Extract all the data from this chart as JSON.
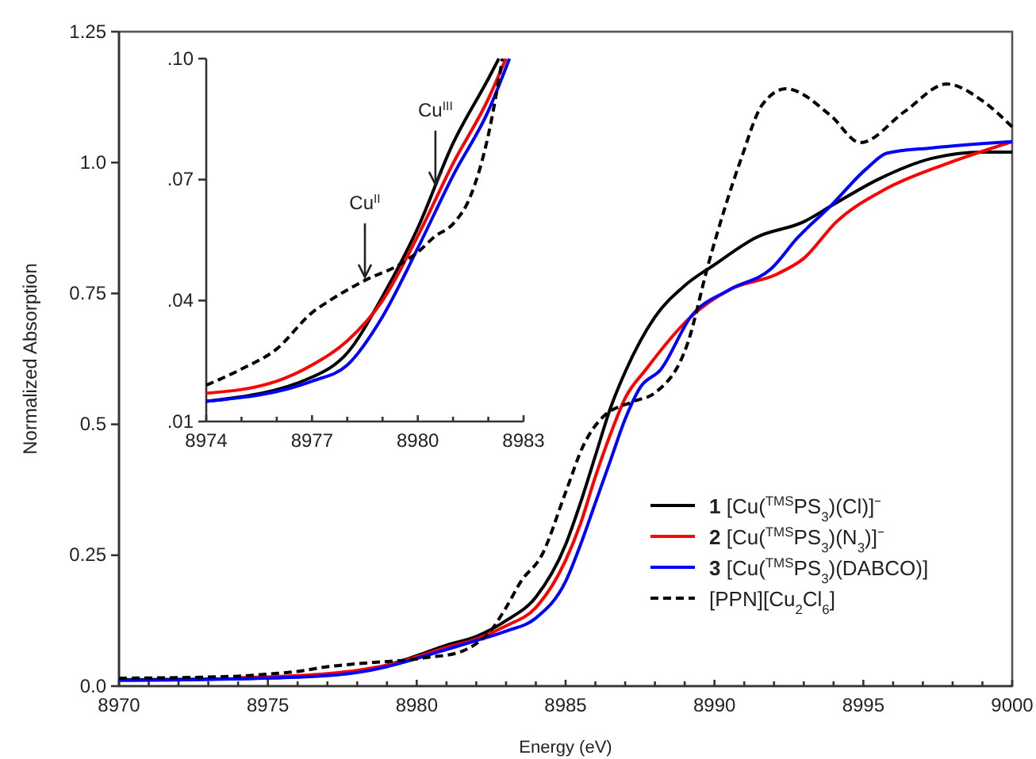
{
  "chart_data": [
    {
      "type": "line",
      "xlabel": "Energy (eV)",
      "ylabel": "Normalized Absorption",
      "xlim": [
        8970,
        9000
      ],
      "ylim": [
        0,
        1.25
      ],
      "xticks": [
        8970,
        {
          "value": 8971,
          "label": null
        },
        {
          "value": 8972,
          "label": null
        },
        {
          "value": 8973,
          "label": null
        },
        {
          "value": 8974,
          "label": null
        },
        8975,
        {
          "value": 8976,
          "label": null
        },
        {
          "value": 8977,
          "label": null
        },
        {
          "value": 8978,
          "label": null
        },
        {
          "value": 8979,
          "label": null
        },
        8980,
        {
          "value": 8981,
          "label": null
        },
        {
          "value": 8982,
          "label": null
        },
        {
          "value": 8983,
          "label": null
        },
        {
          "value": 8984,
          "label": null
        },
        8985,
        {
          "value": 8986,
          "label": null
        },
        {
          "value": 8987,
          "label": null
        },
        {
          "value": 8988,
          "label": null
        },
        {
          "value": 8989,
          "label": null
        },
        8990,
        {
          "value": 8991,
          "label": null
        },
        {
          "value": 8992,
          "label": null
        },
        {
          "value": 8993,
          "label": null
        },
        {
          "value": 8994,
          "label": null
        },
        8995,
        {
          "value": 8996,
          "label": null
        },
        {
          "value": 8997,
          "label": null
        },
        {
          "value": 8998,
          "label": null
        },
        {
          "value": 8999,
          "label": null
        },
        9000
      ],
      "yticks": [
        {
          "value": 0,
          "label": "0.0"
        },
        0.25,
        0.5,
        0.75,
        {
          "value": 1,
          "label": "1.0"
        },
        1.25
      ],
      "legend": "bottom right",
      "grid": false,
      "marker": "none",
      "series": [
        {
          "name": "1 [Cu($^{TMS}$PS$_{3}$)(Cl)]⁻",
          "color": "#000000",
          "x": [
            8970,
            8974,
            8977,
            8979,
            8980,
            8981,
            8982,
            8983,
            8984,
            8985,
            8985.5,
            8986,
            8986.5,
            8987,
            8988,
            8989,
            8990,
            8991.4,
            8993,
            8994,
            8995.5,
            8997.3,
            8999,
            9000
          ],
          "values": [
            0.012,
            0.014,
            0.021,
            0.04,
            0.058,
            0.078,
            0.095,
            0.125,
            0.17,
            0.27,
            0.35,
            0.44,
            0.53,
            0.6,
            0.705,
            0.765,
            0.805,
            0.857,
            0.887,
            0.92,
            0.968,
            1.008,
            1.02,
            1.02
          ]
        },
        {
          "name": "2 [Cu($^{TMS}$PS$_{3}$)(N$_{3}$)]⁻",
          "color": "#ff0000",
          "x": [
            8974,
            8976,
            8977,
            8978,
            8979,
            8980,
            8981,
            8982,
            8983,
            8984,
            8985,
            8985.5,
            8986,
            8986.5,
            8987,
            8987.7,
            8989.2,
            8990.5,
            8992.1,
            8993,
            8994.1,
            8995.7,
            8997.8,
            9000
          ],
          "values": [
            0.016,
            0.02,
            0.024,
            0.03,
            0.04,
            0.056,
            0.074,
            0.09,
            0.115,
            0.15,
            0.24,
            0.31,
            0.4,
            0.48,
            0.55,
            0.605,
            0.705,
            0.757,
            0.787,
            0.817,
            0.887,
            0.948,
            0.998,
            1.04
          ]
        },
        {
          "name": "3 [Cu($^{TMS}$PS$_{3}$)(DABCO)]",
          "color": "#0000ff",
          "x": [
            8970,
            8974,
            8977,
            8978,
            8979,
            8980,
            8981,
            8982,
            8983,
            8984,
            8985,
            8985.5,
            8986,
            8986.5,
            8987,
            8987.5,
            8988.2,
            8989.2,
            8990.5,
            8991.9,
            8992.8,
            8993.9,
            8995.1,
            8995.8,
            8997.3,
            9000
          ],
          "values": [
            0.011,
            0.014,
            0.02,
            0.026,
            0.037,
            0.053,
            0.07,
            0.087,
            0.105,
            0.13,
            0.2,
            0.27,
            0.35,
            0.43,
            0.51,
            0.57,
            0.605,
            0.705,
            0.757,
            0.797,
            0.857,
            0.917,
            0.988,
            1.018,
            1.028,
            1.04
          ]
        },
        {
          "name": "[PPN][Cu$_{2}$Cl$_{6}$]",
          "color": "#000000",
          "line_style": "dashed",
          "x": [
            8970,
            8974,
            8975,
            8976,
            8977,
            8977.5,
            8978.5,
            8979.5,
            8980,
            8980.5,
            8981,
            8981.5,
            8982,
            8982.4,
            8983,
            8983.5,
            8984.2,
            8985,
            8985.6,
            8986.25,
            8987.3,
            8988,
            8989.1,
            8989.8,
            8990.9,
            8991.6,
            8992.4,
            8993.9,
            8994.9,
            8996.4,
            8997.8,
            8999,
            9000
          ],
          "values": [
            0.015,
            0.019,
            0.023,
            0.028,
            0.037,
            0.04,
            0.045,
            0.049,
            0.052,
            0.056,
            0.059,
            0.066,
            0.081,
            0.1,
            0.15,
            0.2,
            0.25,
            0.37,
            0.46,
            0.514,
            0.544,
            0.56,
            0.655,
            0.807,
            1.008,
            1.11,
            1.141,
            1.09,
            1.038,
            1.098,
            1.15,
            1.118,
            1.068
          ]
        }
      ]
    },
    {
      "type": "line",
      "xlim": [
        8974,
        8983
      ],
      "ylim": [
        0.01,
        0.1
      ],
      "xticks": [
        8974,
        {
          "value": 8975,
          "label": null
        },
        {
          "value": 8976,
          "label": null
        },
        8977,
        {
          "value": 8978,
          "label": null
        },
        {
          "value": 8979,
          "label": null
        },
        8980,
        {
          "value": 8981,
          "label": null
        },
        {
          "value": 8982,
          "label": null
        },
        8983
      ],
      "yticks": [
        {
          "value": 0.01,
          "label": ".01"
        },
        {
          "value": 0.04,
          "label": ".04"
        },
        {
          "value": 0.07,
          "label": ".07"
        },
        {
          "value": 0.1,
          "label": ".10"
        }
      ],
      "legend": false,
      "grid": false,
      "marker": "none",
      "annotations": [
        {
          "text": "Cu$^{II}$",
          "x": 8978.5,
          "y": 0.045
        },
        {
          "text": "Cu$^{III}$",
          "x": 8980.5,
          "y": 0.068
        }
      ],
      "series": [
        {
          "color": "#000000",
          "x": [
            8974,
            8977,
            8978,
            8979,
            8980,
            8981,
            8982,
            8982.3
          ],
          "values": [
            0.015,
            0.021,
            0.027,
            0.041,
            0.058,
            0.079,
            0.095,
            0.1
          ]
        },
        {
          "color": "#ff0000",
          "x": [
            8974,
            8976,
            8977,
            8978,
            8979,
            8980,
            8981,
            8982,
            8982.5
          ],
          "values": [
            0.017,
            0.02,
            0.024,
            0.03,
            0.04,
            0.056,
            0.074,
            0.09,
            0.1
          ]
        },
        {
          "color": "#0000ff",
          "x": [
            8974,
            8977,
            8978,
            8979,
            8980,
            8981,
            8982,
            8982.6
          ],
          "values": [
            0.015,
            0.02,
            0.024,
            0.036,
            0.053,
            0.071,
            0.087,
            0.1
          ]
        },
        {
          "color": "#000000",
          "line_style": "dashed",
          "x": [
            8974,
            8975,
            8976,
            8977,
            8977.5,
            8978.5,
            8979.5,
            8980,
            8980.5,
            8981,
            8981.5,
            8982,
            8982.4
          ],
          "values": [
            0.019,
            0.023,
            0.028,
            0.037,
            0.04,
            0.045,
            0.049,
            0.052,
            0.056,
            0.059,
            0.066,
            0.081,
            0.1
          ]
        }
      ]
    }
  ]
}
